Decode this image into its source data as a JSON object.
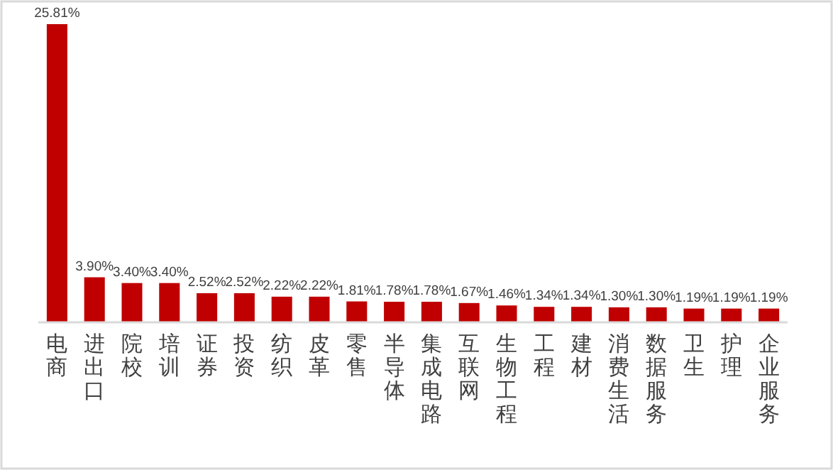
{
  "chart_data": {
    "type": "bar",
    "categories": [
      "电商",
      "进出口",
      "院校",
      "培训",
      "证券",
      "投资",
      "纺织",
      "皮革",
      "零售",
      "半导体",
      "集成电路",
      "互联网",
      "生物工程",
      "工程",
      "建材",
      "消费生活",
      "数据服务",
      "卫生",
      "护理",
      "企业服务"
    ],
    "values": [
      25.81,
      3.9,
      3.4,
      3.4,
      2.52,
      2.52,
      2.22,
      2.22,
      1.81,
      1.78,
      1.78,
      1.67,
      1.46,
      1.34,
      1.34,
      1.3,
      1.3,
      1.19,
      1.19,
      1.19
    ],
    "value_labels": [
      "25.81%",
      "3.90%",
      "3.40%",
      "3.40%",
      "2.52%",
      "2.52%",
      "2.22%",
      "2.22%",
      "1.81%",
      "1.78%",
      "1.78%",
      "1.67%",
      "1.46%",
      "1.34%",
      "1.34%",
      "1.30%",
      "1.30%",
      "1.19%",
      "1.19%",
      "1.19%"
    ],
    "color": "#c00000"
  }
}
